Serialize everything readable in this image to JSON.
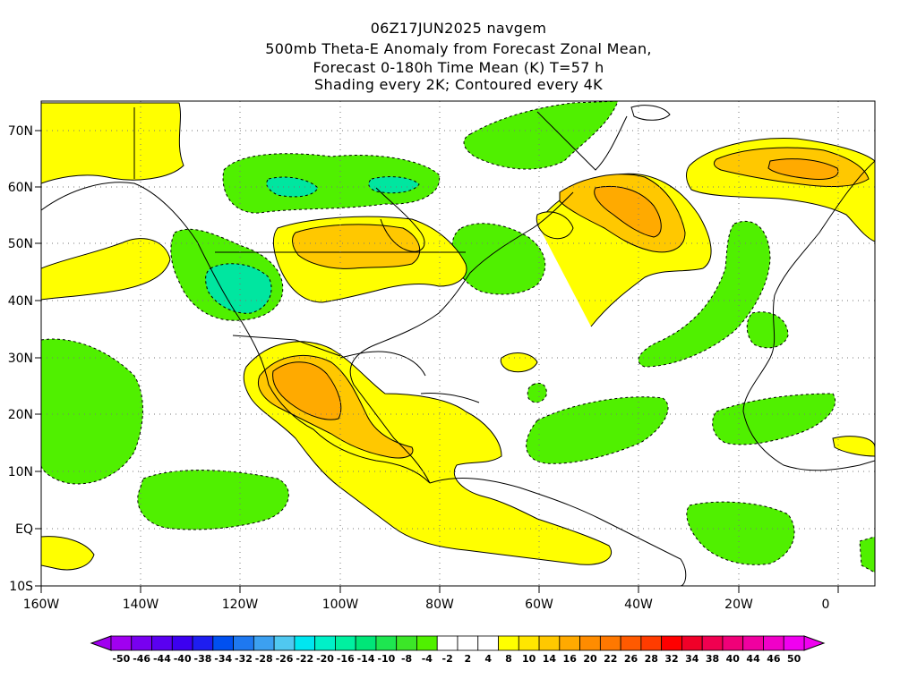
{
  "title": {
    "line1": "06Z17JUN2025 navgem",
    "line2": "500mb Theta-E Anomaly from Forecast Zonal Mean,",
    "line3": "Forecast 0-180h Time Mean (K) T=57 h",
    "line4": "Shading every 2K; Contoured every 4K"
  },
  "map": {
    "lon_labels": [
      "160W",
      "140W",
      "120W",
      "100W",
      "80W",
      "60W",
      "40W",
      "20W",
      "0"
    ],
    "lat_labels": [
      "70N",
      "60N",
      "50N",
      "40N",
      "30N",
      "20N",
      "10N",
      "EQ",
      "10S"
    ]
  },
  "colorbar": {
    "labels": [
      "-50",
      "-46",
      "-44",
      "-40",
      "-38",
      "-34",
      "-32",
      "-28",
      "-26",
      "-22",
      "-20",
      "-16",
      "-14",
      "-10",
      "-8",
      "-4",
      "-2",
      "2",
      "4",
      "8",
      "10",
      "14",
      "16",
      "20",
      "22",
      "26",
      "28",
      "32",
      "34",
      "38",
      "40",
      "44",
      "46",
      "50"
    ],
    "colors": [
      "#a000f0",
      "#7800f0",
      "#5a00f0",
      "#3c00f0",
      "#1e1ef0",
      "#0050f0",
      "#1e78f0",
      "#3ca0f0",
      "#50c8f0",
      "#00e6f0",
      "#00f0c8",
      "#00f0a0",
      "#00e678",
      "#1ee650",
      "#3ce628",
      "#50f000",
      "#ffffff",
      "#ffffff",
      "#ffffff",
      "#ffff00",
      "#ffe600",
      "#ffc800",
      "#ffaa00",
      "#ff8c00",
      "#ff7800",
      "#ff5a00",
      "#ff3c00",
      "#ff0000",
      "#f00028",
      "#f00050",
      "#f00078",
      "#f000a0",
      "#f000c8",
      "#f000f0"
    ]
  },
  "palette": {
    "green": "#50f000",
    "green_dark": "#1ee650",
    "teal": "#00e6a0",
    "yellow": "#ffff00",
    "gold": "#ffc800",
    "orange": "#ffaa00",
    "orange_dark": "#ff8c00"
  }
}
